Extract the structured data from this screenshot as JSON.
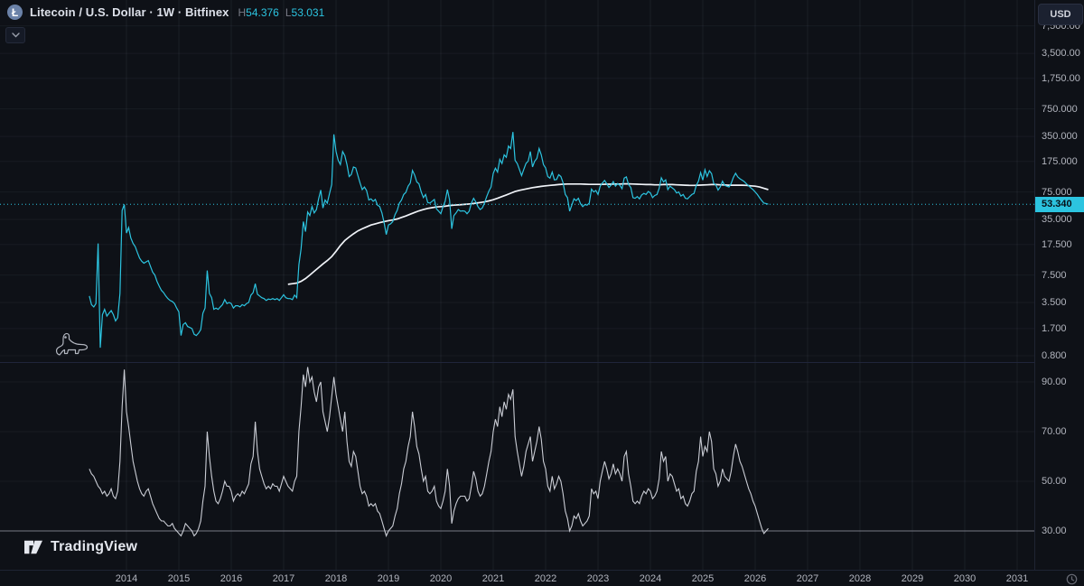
{
  "header": {
    "logo_glyph": "Ł",
    "symbol_title": "Litecoin / U.S. Dollar · 1W · Bitfinex",
    "high_label": "H",
    "high_value": "54.376",
    "low_label": "L",
    "low_value": "53.031"
  },
  "price_scale": {
    "currency_label": "USD",
    "last_price_label": "53.340"
  },
  "footer": {
    "brand": "TradingView"
  },
  "colors": {
    "accent_cyan": "#2cc4e0",
    "ma_white": "#f0f3f8",
    "oscillator_gray": "#c9ccd4",
    "background": "#0e1117",
    "axis_text": "#b2b5be",
    "title_text": "#dde1ea",
    "muted_text": "#787b86",
    "badge_text": "#071018"
  },
  "chart_data": {
    "type": "line",
    "title": "Litecoin / U.S. Dollar",
    "interval": "1W",
    "exchange": "Bitfinex",
    "high": 54.376,
    "low": 53.031,
    "last": 53.34,
    "grid": true,
    "x_ticks": {
      "values": [
        2014,
        2015,
        2016,
        2017,
        2018,
        2019,
        2020,
        2021,
        2022,
        2023,
        2024,
        2025,
        2026,
        2027,
        2028,
        2029,
        2030,
        2031
      ],
      "labels": [
        "2014",
        "2015",
        "2016",
        "2017",
        "2018",
        "2019",
        "2020",
        "2021",
        "2022",
        "2023",
        "2024",
        "2025",
        "2026",
        "2027",
        "2028",
        "2029",
        "2030",
        "2031"
      ]
    },
    "panels": [
      {
        "name": "price",
        "yscale": "log",
        "ylim": [
          0.75,
          9000
        ],
        "yticks": [
          7500,
          3500,
          1750,
          750,
          350,
          175,
          75,
          35,
          17.5,
          7.5,
          3.5,
          1.7,
          0.8
        ],
        "ytick_labels": [
          "7,500.00",
          "3,500.00",
          "1,750.00",
          "750.000",
          "350.000",
          "175.000",
          "75.000",
          "35.000",
          "17.500",
          "7.500",
          "3.500",
          "1.700",
          "0.800"
        ],
        "last_price": 53.34,
        "series": [
          {
            "name": "LTCUSD weekly close",
            "color": "#2cc4e0",
            "x_start": 2013.2917,
            "x_step": 0.041667,
            "values": [
              4.2,
              3.3,
              3.1,
              3.4,
              18,
              1.0,
              2.5,
              2.9,
              2.4,
              2.6,
              2.8,
              2.5,
              2.1,
              2.3,
              4.5,
              45,
              53,
              24,
              28,
              21,
              18,
              16.5,
              14,
              12,
              11,
              10.4,
              10.8,
              11.2,
              9.5,
              8.1,
              7.5,
              6.3,
              5.5,
              4.9,
              4.6,
              4.2,
              3.9,
              3.7,
              3.6,
              3.4,
              3.0,
              2.7,
              1.4,
              1.9,
              2.0,
              1.8,
              1.75,
              1.7,
              1.45,
              1.4,
              1.5,
              1.65,
              2.6,
              3.0,
              8.5,
              4.5,
              4.0,
              2.9,
              3.0,
              2.9,
              3.1,
              3.3,
              3.8,
              3.4,
              3.5,
              3.4,
              3.0,
              3.2,
              3.2,
              3.1,
              3.3,
              3.2,
              3.4,
              3.5,
              4.3,
              4.6,
              5.9,
              4.4,
              4.2,
              4.0,
              3.9,
              3.7,
              3.85,
              3.8,
              3.9,
              3.8,
              3.9,
              3.7,
              4.0,
              4.35,
              4.0,
              3.9,
              3.9,
              3.8,
              4.3,
              4.0,
              10,
              15.5,
              33,
              25,
              43,
              39,
              50,
              42,
              46,
              62,
              79,
              48,
              60,
              55,
              72,
              92,
              370,
              230,
              180,
              160,
              230,
              205,
              160,
              115,
              122,
              150,
              146,
              118,
              96,
              80,
              86,
              78,
              60,
              62,
              58,
              61,
              52,
              50,
              42,
              32,
              23,
              30,
              31,
              33,
              40,
              45,
              55,
              60,
              70,
              74,
              88,
              96,
              136,
              120,
              99,
              94,
              75,
              64,
              70,
              56,
              55,
              58,
              61,
              47,
              44,
              41,
              50,
              58,
              80,
              60,
              27,
              39,
              42,
              46,
              44,
              44.5,
              44,
              41,
              44,
              55,
              63,
              57,
              50,
              46,
              48,
              55,
              66,
              77,
              86,
              125,
              145,
              130,
              185,
              165,
              210,
              196,
              268,
              250,
              395,
              180,
              165,
              140,
              118,
              140,
              166,
              176,
              230,
              150,
              176,
              190,
              250,
              210,
              160,
              146,
              115,
              110,
              130,
              105,
              106,
              121,
              115,
              97,
              70,
              64,
              44,
              52,
              62,
              59,
              63,
              54,
              50,
              53,
              52,
              55,
              81,
              75,
              78,
              70,
              88,
              96,
              103,
              94,
              85,
              91,
              100,
              88,
              95,
              90,
              82,
              110,
              114,
              92,
              85,
              64,
              63,
              66,
              62,
              69,
              72,
              70,
              76,
              73,
              64,
              68,
              70,
              83,
              111,
              99,
              105,
              80,
              88,
              84,
              80,
              73,
              75,
              67,
              70,
              63,
              62,
              66,
              70,
              72,
              90,
              101,
              128,
              104,
              139,
              115,
              135,
              125,
              95,
              91,
              79,
              86,
              101,
              90,
              88,
              86,
              95,
              112,
              126,
              114,
              108,
              104,
              100,
              94,
              89,
              84,
              80,
              75,
              70,
              64,
              59,
              55,
              54.4,
              53.34
            ]
          },
          {
            "name": "long moving average",
            "color": "#f0f3f8",
            "x_start": 2017.0833,
            "x_step": 0.083333,
            "values": [
              5.8,
              5.9,
              6.0,
              6.3,
              6.8,
              7.5,
              8.3,
              9.2,
              10.2,
              11.2,
              12.5,
              14.5,
              17,
              19.5,
              21.5,
              23.5,
              25.5,
              27,
              28.5,
              30,
              31,
              32,
              33,
              33.8,
              34.5,
              35.5,
              37,
              38.5,
              40.5,
              42.5,
              44.5,
              46,
              47.5,
              48.5,
              49.5,
              50,
              50.5,
              51.5,
              52,
              52.5,
              53,
              53.5,
              54,
              55,
              56,
              57,
              58.5,
              60.5,
              63,
              66,
              69,
              72.5,
              76,
              78.5,
              80.5,
              82.5,
              84.5,
              86,
              87.5,
              89,
              90,
              91,
              92,
              93,
              93.5,
              93.5,
              93.5,
              93.5,
              93,
              92.5,
              92.5,
              92.5,
              92.5,
              93,
              93,
              93.5,
              93.5,
              94,
              94,
              93.5,
              93,
              92.5,
              92,
              92,
              91.5,
              91.5,
              92,
              92,
              92,
              91.5,
              91,
              90.5,
              90,
              90,
              90.5,
              91,
              91.5,
              92,
              92,
              91.5,
              91,
              90.5,
              90.5,
              90.5,
              90.5,
              90,
              89,
              88,
              86,
              83,
              80
            ]
          }
        ]
      },
      {
        "name": "oscillator",
        "yscale": "linear",
        "ylim": [
          25,
          100
        ],
        "yticks": [
          90,
          70,
          50,
          30
        ],
        "ytick_labels": [
          "90.00",
          "70.00",
          "50.00",
          "30.00"
        ],
        "level_line": 30,
        "series": [
          {
            "name": "oscillator",
            "color": "#c9ccd4",
            "x_start": 2013.2917,
            "x_step": 0.041667,
            "values": [
              55,
              53,
              52,
              50,
              48,
              47,
              45,
              46,
              44,
              45,
              47,
              44,
              43,
              46,
              58,
              80,
              95,
              78,
              72,
              65,
              58,
              54,
              50,
              47,
              45,
              44,
              46,
              47,
              44,
              41,
              39,
              37,
              35,
              34,
              34,
              33,
              32,
              32,
              33,
              31,
              30,
              29,
              28,
              30,
              33,
              32,
              31,
              30,
              28,
              29,
              31,
              34,
              42,
              48,
              70,
              60,
              52,
              46,
              42,
              41,
              43,
              46,
              50,
              48,
              48,
              46,
              42,
              44,
              45,
              44,
              46,
              45,
              47,
              49,
              57,
              60,
              74,
              62,
              55,
              52,
              49,
              47,
              48,
              47,
              49,
              48,
              48,
              46,
              49,
              52,
              50,
              48,
              47,
              46,
              50,
              52,
              70,
              80,
              93,
              88,
              96,
              90,
              92,
              86,
              82,
              88,
              90,
              78,
              74,
              70,
              76,
              84,
              92,
              85,
              80,
              75,
              70,
              78,
              66,
              58,
              56,
              62,
              60,
              54,
              48,
              45,
              46,
              44,
              40,
              41,
              40,
              41,
              38,
              37,
              34,
              31,
              28,
              30,
              31,
              32,
              36,
              39,
              45,
              49,
              55,
              58,
              64,
              68,
              78,
              72,
              64,
              61,
              55,
              50,
              52,
              46,
              45,
              46,
              48,
              42,
              40,
              39,
              42,
              46,
              55,
              48,
              33,
              38,
              41,
              43,
              44,
              44,
              44,
              42,
              43,
              48,
              54,
              51,
              46,
              44,
              45,
              48,
              53,
              58,
              62,
              70,
              75,
              72,
              80,
              76,
              82,
              79,
              85,
              83,
              87,
              68,
              62,
              57,
              52,
              56,
              62,
              65,
              68,
              58,
              62,
              66,
              72,
              67,
              58,
              55,
              48,
              46,
              52,
              47,
              49,
              52,
              50,
              45,
              38,
              35,
              30,
              32,
              36,
              35,
              37,
              34,
              32,
              33,
              34,
              36,
              47,
              45,
              46,
              43,
              50,
              54,
              58,
              55,
              51,
              53,
              57,
              53,
              55,
              53,
              50,
              60,
              62,
              53,
              48,
              42,
              41,
              42,
              41,
              44,
              46,
              45,
              47,
              46,
              43,
              44,
              46,
              51,
              62,
              58,
              60,
              50,
              53,
              52,
              49,
              46,
              47,
              43,
              44,
              41,
              40,
              42,
              45,
              46,
              54,
              58,
              68,
              60,
              64,
              62,
              70,
              66,
              55,
              53,
              48,
              50,
              55,
              52,
              51,
              50,
              54,
              60,
              65,
              62,
              58,
              56,
              53,
              50,
              47,
              45,
              42,
              40,
              37,
              34,
              31,
              29,
              30,
              31
            ]
          }
        ]
      }
    ]
  }
}
